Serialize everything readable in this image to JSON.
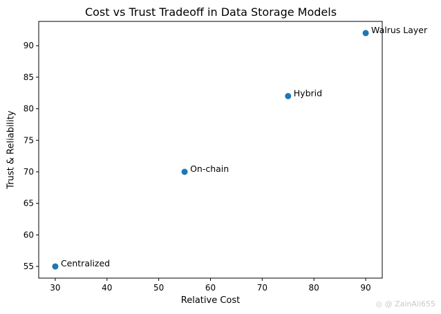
{
  "chart_data": {
    "type": "scatter",
    "title": "Cost vs Trust Tradeoff in Data Storage Models",
    "xlabel": "Relative Cost",
    "ylabel": "Trust & Reliability",
    "xlim": [
      26.8,
      93.2
    ],
    "ylim": [
      53.15,
      93.85
    ],
    "xticks": [
      30,
      40,
      50,
      60,
      70,
      80,
      90
    ],
    "yticks": [
      55,
      60,
      65,
      70,
      75,
      80,
      85,
      90
    ],
    "grid": false,
    "points": [
      {
        "label": "Centralized",
        "x": 30,
        "y": 55
      },
      {
        "label": "On-chain",
        "x": 55,
        "y": 70
      },
      {
        "label": "Hybrid",
        "x": 75,
        "y": 82
      },
      {
        "label": "Walrus Layer",
        "x": 90,
        "y": 92
      }
    ],
    "marker_color": "#1f77b4"
  },
  "watermark": "◎ @ ZainAli655"
}
